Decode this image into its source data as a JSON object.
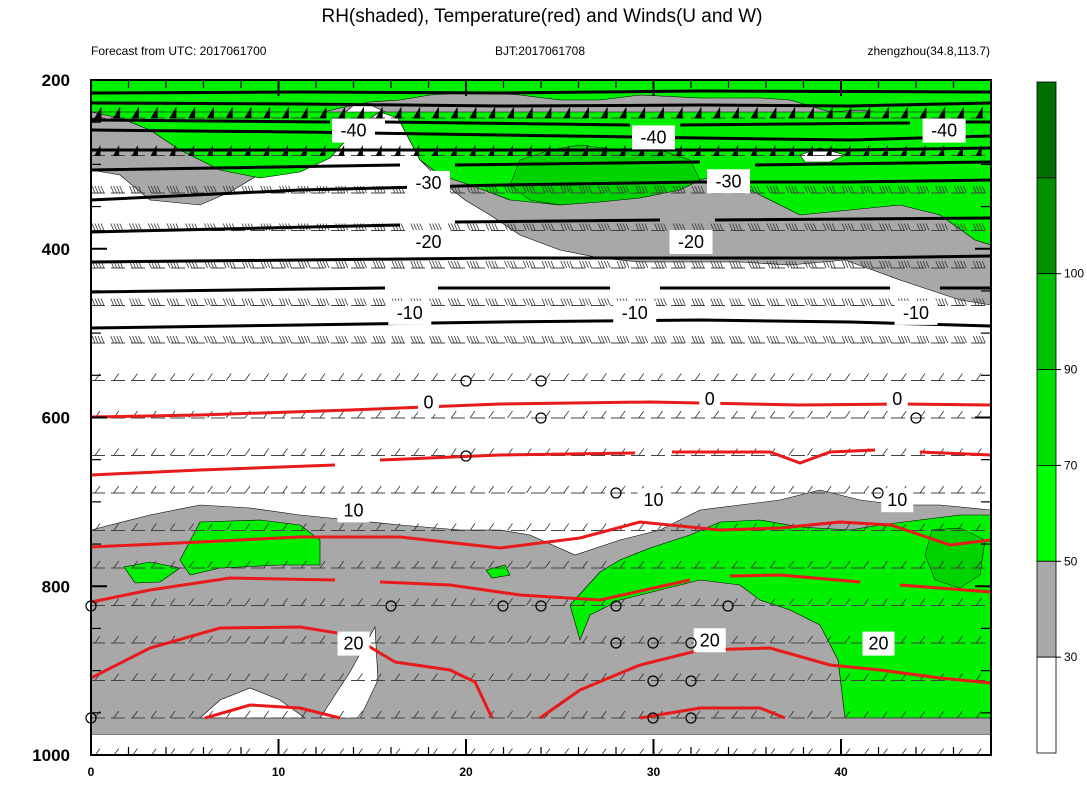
{
  "chart_data": {
    "type": "contour",
    "title": "RH(shaded), Temperature(red) and Winds(U and W)",
    "subtitle_left": "Forecast from UTC: 2017061700",
    "subtitle_center": "BJT:2017061708",
    "subtitle_right": "zhengzhou(34.8,113.7)",
    "x_ticks": [
      0,
      10,
      20,
      30,
      40
    ],
    "x_range": [
      0,
      48
    ],
    "y_ticks": [
      200,
      400,
      600,
      800,
      1000
    ],
    "y_range": [
      200,
      1000
    ],
    "colorbar": {
      "levels": [
        30,
        50,
        70,
        90,
        100
      ],
      "colors": [
        "#ffffff",
        "#a9a9a9",
        "#00ff00",
        "#00e000",
        "#00c000",
        "#009000",
        "#007000"
      ]
    },
    "temperature_labels": [
      {
        "text": "-40",
        "x": 14,
        "y": 260
      },
      {
        "text": "-40",
        "x": 30,
        "y": 268
      },
      {
        "text": "-40",
        "x": 45.5,
        "y": 260
      },
      {
        "text": "-30",
        "x": 18,
        "y": 322
      },
      {
        "text": "-30",
        "x": 34,
        "y": 320
      },
      {
        "text": "-20",
        "x": 18,
        "y": 392
      },
      {
        "text": "-20",
        "x": 32,
        "y": 392
      },
      {
        "text": "-10",
        "x": 17,
        "y": 476
      },
      {
        "text": "-10",
        "x": 29,
        "y": 476
      },
      {
        "text": "-10",
        "x": 44,
        "y": 476
      },
      {
        "text": "0",
        "x": 18,
        "y": 582
      },
      {
        "text": "0",
        "x": 33,
        "y": 578
      },
      {
        "text": "0",
        "x": 43,
        "y": 578
      },
      {
        "text": "10",
        "x": 14,
        "y": 710
      },
      {
        "text": "10",
        "x": 30,
        "y": 698
      },
      {
        "text": "10",
        "x": 43,
        "y": 698
      },
      {
        "text": "20",
        "x": 14,
        "y": 868
      },
      {
        "text": "20",
        "x": 33,
        "y": 864
      },
      {
        "text": "20",
        "x": 42,
        "y": 868
      }
    ]
  }
}
